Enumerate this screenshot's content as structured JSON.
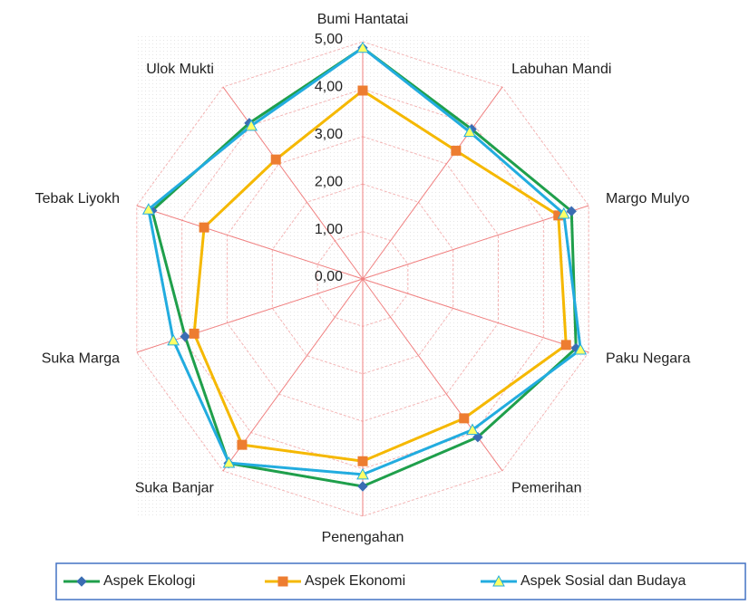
{
  "chart_data": {
    "type": "radar",
    "categories": [
      "Bumi Hantatai",
      "Labuhan Mandi",
      "Margo Mulyo",
      "Paku Negara",
      "Pemerihan",
      "Penengahan",
      "Suka Banjar",
      "Suka Marga",
      "Tebak Liyokh",
      "Ulok Mukti"
    ],
    "series": [
      {
        "name": "Aspek Ekologi",
        "color": "#1f9f4b",
        "marker": "diamond",
        "marker_color": "#3b6db3",
        "values": [
          4.87,
          3.9,
          4.62,
          4.72,
          4.12,
          4.37,
          4.8,
          3.93,
          4.66,
          4.06
        ]
      },
      {
        "name": "Aspek Ekonomi",
        "color": "#f5b800",
        "marker": "square",
        "marker_color": "#ed7d31",
        "values": [
          3.97,
          3.34,
          4.33,
          4.5,
          3.63,
          3.84,
          4.32,
          3.73,
          3.51,
          3.11
        ]
      },
      {
        "name": "Aspek Sosial dan Budaya",
        "color": "#22acdf",
        "marker": "triangle",
        "marker_color": "#ffff66",
        "values": [
          4.87,
          3.83,
          4.45,
          4.82,
          3.93,
          4.12,
          4.79,
          4.19,
          4.74,
          3.99
        ]
      }
    ],
    "ylim": [
      0,
      5
    ],
    "yticks": [
      {
        "value": 0,
        "label": "0,00"
      },
      {
        "value": 1,
        "label": "1,00"
      },
      {
        "value": 2,
        "label": "2,00"
      },
      {
        "value": 3,
        "label": "3,00"
      },
      {
        "value": 4,
        "label": "4,00"
      },
      {
        "value": 5,
        "label": "5,00"
      }
    ],
    "grid": true,
    "legend": "bottom"
  }
}
